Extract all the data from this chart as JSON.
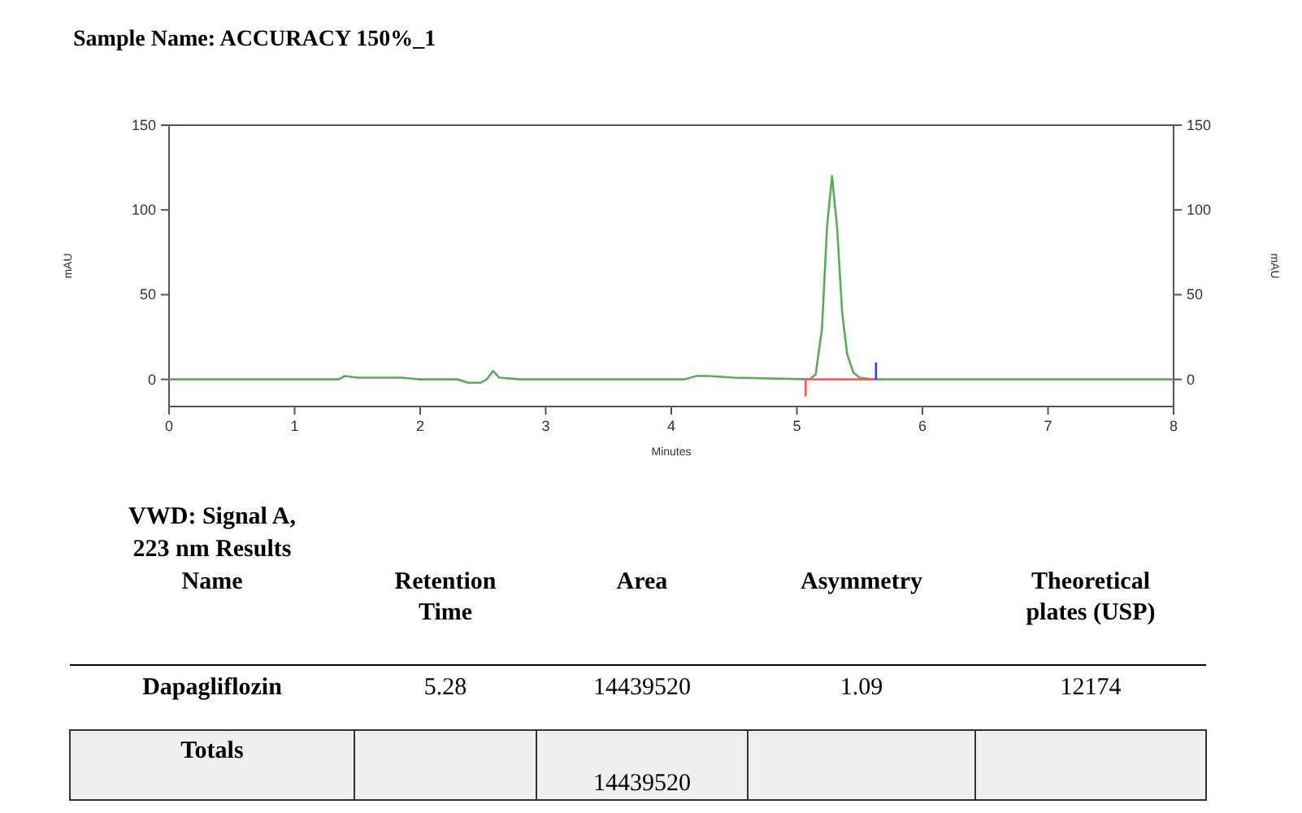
{
  "chart_data": [
    {
      "type": "line",
      "title": "Sample Name: ACCURACY 150%_1",
      "xlabel": "Minutes",
      "ylabel": "mAU",
      "y2label": "mAU",
      "xlim": [
        0,
        8
      ],
      "xticks": [
        0,
        1,
        2,
        3,
        4,
        5,
        6,
        7,
        8
      ],
      "ylim": [
        -16,
        150
      ],
      "yticks": [
        0,
        50,
        100,
        150
      ],
      "y2lim": [
        -16,
        150
      ],
      "y2ticks": [
        0,
        50,
        100,
        150
      ],
      "grid": false,
      "marker": "none",
      "line_style": "solid",
      "series": [
        {
          "color": "#5aac5a",
          "x": [
            0,
            1.35,
            1.4,
            1.5,
            1.8,
            1.85,
            2.0,
            2.3,
            2.38,
            2.48,
            2.53,
            2.58,
            2.63,
            2.8,
            4.1,
            4.2,
            4.3,
            4.5,
            5.1,
            5.15,
            5.2,
            5.24,
            5.28,
            5.32,
            5.36,
            5.4,
            5.45,
            5.5,
            5.6,
            8
          ],
          "values": [
            0,
            0,
            2,
            1,
            1,
            1,
            0,
            0,
            -2,
            -2,
            0,
            5,
            1,
            0,
            0,
            2,
            2,
            1,
            0,
            3,
            30,
            90,
            120,
            90,
            40,
            15,
            4,
            1,
            0,
            0
          ]
        },
        {
          "color": "#ff5a5a",
          "x": [
            5.07,
            5.07,
            5.63
          ],
          "values": [
            -10,
            0,
            0
          ]
        },
        {
          "color": "#3a3aff",
          "x": [
            5.63,
            5.63
          ],
          "values": [
            0,
            10
          ]
        }
      ]
    },
    {
      "type": "other",
      "title": "VWD: Signal A, 223 nm Results",
      "categories": [
        "Name",
        "Retention Time",
        "Area",
        "Asymmetry",
        "Theoretical plates (USP)"
      ],
      "cell_labels": [
        [
          "Dapagliflozin",
          "5.28",
          "14439520",
          "1.09",
          "12174"
        ],
        [
          "Totals",
          null,
          "14439520",
          null,
          null
        ]
      ]
    }
  ]
}
